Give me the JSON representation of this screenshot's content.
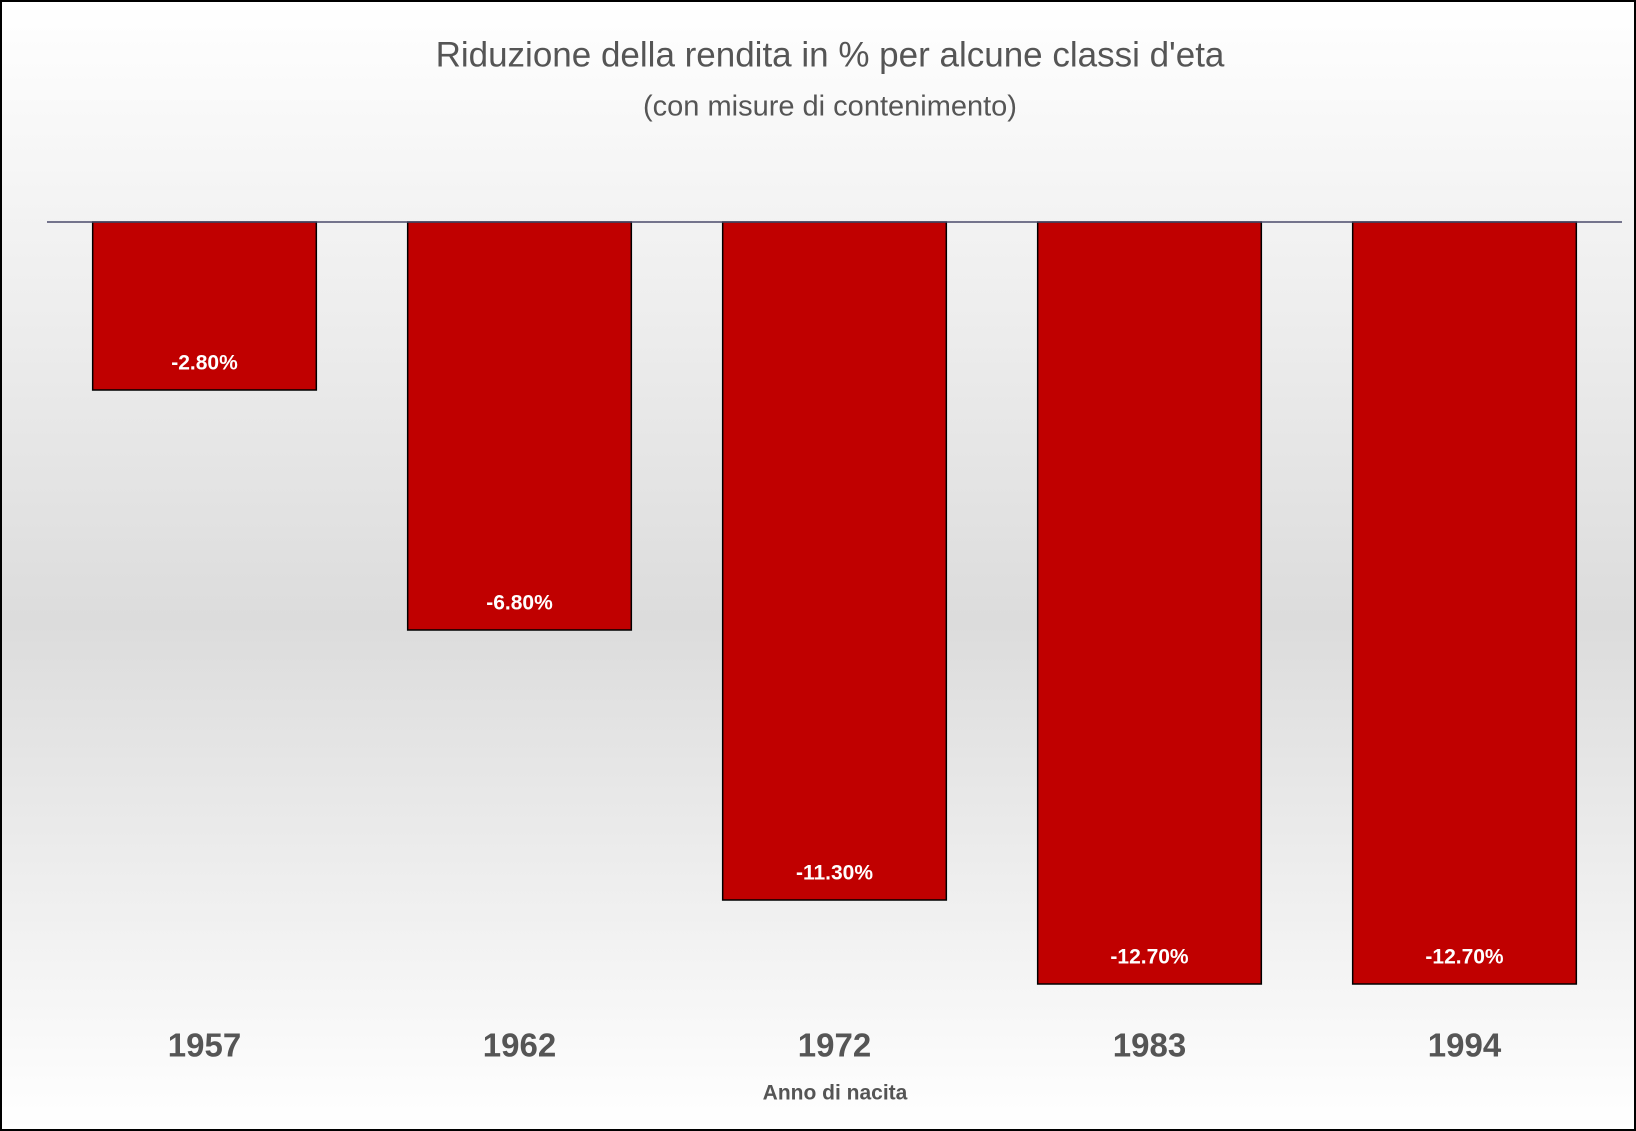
{
  "chart_data": {
    "type": "bar",
    "title": "Riduzione della rendita in % per alcune classi d'eta",
    "subtitle": "(con misure di contenimento)",
    "x_label": "Anno di nacita",
    "categories": [
      "1957",
      "1962",
      "1972",
      "1983",
      "1994"
    ],
    "values": [
      -2.8,
      -6.8,
      -11.3,
      -12.7,
      -12.7
    ],
    "value_labels": [
      "-2.80%",
      "-6.80%",
      "-11.30%",
      "-12.70%",
      "-12.70%"
    ],
    "color": "#c00000",
    "ylim": [
      -14,
      0
    ]
  }
}
